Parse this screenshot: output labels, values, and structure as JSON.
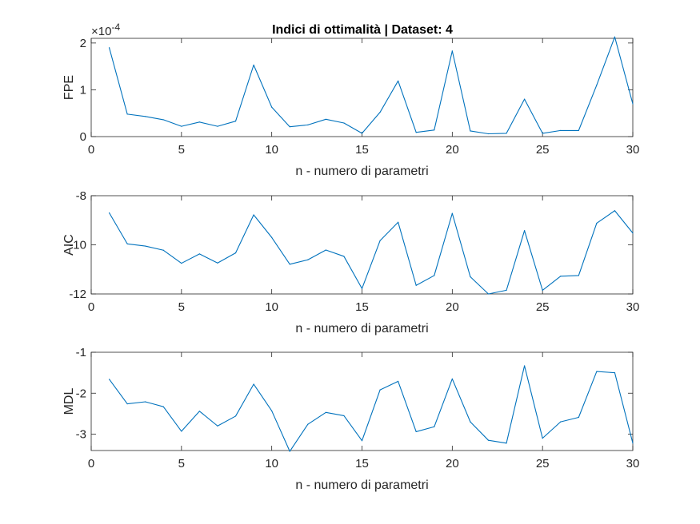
{
  "figure": {
    "title": "Indici di ottimalità | Dataset: 4",
    "background": "#ffffff",
    "line_color": "#0072BD",
    "axes_color": "#262626"
  },
  "chart_data": [
    {
      "type": "line",
      "ylabel": "FPE",
      "xlabel": "n - numero di parametri",
      "exponent_label": "×10",
      "exponent_value": "-4",
      "xlim": [
        0,
        30
      ],
      "ylim": [
        0,
        2.1
      ],
      "xticks": [
        0,
        5,
        10,
        15,
        20,
        25,
        30
      ],
      "yticks": [
        0,
        1,
        2
      ],
      "ytick_labels": [
        "0",
        "1",
        "2"
      ],
      "x": [
        1,
        2,
        3,
        4,
        5,
        6,
        7,
        8,
        9,
        10,
        11,
        12,
        13,
        14,
        15,
        16,
        17,
        18,
        19,
        20,
        21,
        22,
        23,
        24,
        25,
        26,
        27,
        28,
        29,
        30
      ],
      "y": [
        1.9,
        0.48,
        0.43,
        0.36,
        0.22,
        0.31,
        0.22,
        0.33,
        1.53,
        0.63,
        0.21,
        0.25,
        0.37,
        0.29,
        0.07,
        0.52,
        1.19,
        0.09,
        0.14,
        1.83,
        0.12,
        0.06,
        0.07,
        0.8,
        0.07,
        0.13,
        0.13,
        1.1,
        2.13,
        0.7
      ]
    },
    {
      "type": "line",
      "ylabel": "AIC",
      "xlabel": "n - numero di parametri",
      "xlim": [
        0,
        30
      ],
      "ylim": [
        -12,
        -8
      ],
      "xticks": [
        0,
        5,
        10,
        15,
        20,
        25,
        30
      ],
      "yticks": [
        -12,
        -10,
        -8
      ],
      "ytick_labels": [
        "-12",
        "-10",
        "-8"
      ],
      "x": [
        1,
        2,
        3,
        4,
        5,
        6,
        7,
        8,
        9,
        10,
        11,
        12,
        13,
        14,
        15,
        16,
        17,
        18,
        19,
        20,
        21,
        22,
        23,
        24,
        25,
        26,
        27,
        28,
        29,
        30
      ],
      "y": [
        -8.7,
        -9.96,
        -10.05,
        -10.22,
        -10.75,
        -10.37,
        -10.74,
        -10.33,
        -8.78,
        -9.7,
        -10.79,
        -10.61,
        -10.21,
        -10.47,
        -11.78,
        -9.83,
        -9.08,
        -11.65,
        -11.25,
        -8.72,
        -11.3,
        -12.0,
        -11.85,
        -9.42,
        -11.85,
        -11.28,
        -11.25,
        -9.12,
        -8.61,
        -9.52
      ]
    },
    {
      "type": "line",
      "ylabel": "MDL",
      "xlabel": "n - numero di parametri",
      "xlim": [
        0,
        30
      ],
      "ylim": [
        -3.4,
        -1
      ],
      "xticks": [
        0,
        5,
        10,
        15,
        20,
        25,
        30
      ],
      "yticks": [
        -3,
        -2,
        -1
      ],
      "ytick_labels": [
        "-3",
        "-2",
        "-1"
      ],
      "x": [
        1,
        2,
        3,
        4,
        5,
        6,
        7,
        8,
        9,
        10,
        11,
        12,
        13,
        14,
        15,
        16,
        17,
        18,
        19,
        20,
        21,
        22,
        23,
        24,
        25,
        26,
        27,
        28,
        29,
        30
      ],
      "y": [
        -1.66,
        -2.26,
        -2.21,
        -2.33,
        -2.93,
        -2.44,
        -2.8,
        -2.56,
        -1.78,
        -2.43,
        -3.42,
        -2.76,
        -2.47,
        -2.55,
        -3.16,
        -1.92,
        -1.71,
        -2.94,
        -2.82,
        -1.65,
        -2.7,
        -3.15,
        -3.22,
        -1.33,
        -3.1,
        -2.7,
        -2.59,
        -1.47,
        -1.5,
        -3.22
      ]
    }
  ]
}
